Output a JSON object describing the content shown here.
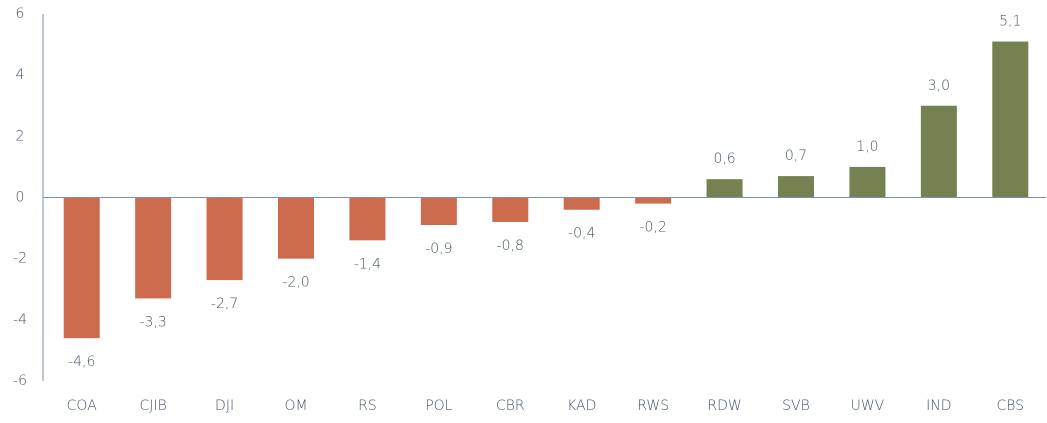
{
  "chart_data": {
    "type": "bar",
    "categories": [
      "COA",
      "CJIB",
      "DJI",
      "OM",
      "RS",
      "POL",
      "CBR",
      "KAD",
      "RWS",
      "RDW",
      "SVB",
      "UWV",
      "IND",
      "CBS"
    ],
    "values": [
      -4.6,
      -3.3,
      -2.7,
      -2.0,
      -1.4,
      -0.9,
      -0.8,
      -0.4,
      -0.2,
      0.6,
      0.7,
      1.0,
      3.0,
      5.1
    ],
    "value_labels": [
      "-4,6",
      "-3,3",
      "-2,7",
      "-2,0",
      "-1,4",
      "-0,9",
      "-0,8",
      "-0,4",
      "-0,2",
      "0,6",
      "0,7",
      "1,0",
      "3,0",
      "5,1"
    ],
    "colors": [
      "#cd6b4e",
      "#cd6b4e",
      "#cd6b4e",
      "#cd6b4e",
      "#cd6b4e",
      "#cd6b4e",
      "#cd6b4e",
      "#cd6b4e",
      "#cd6b4e",
      "#758150",
      "#758150",
      "#758150",
      "#758150",
      "#758150"
    ],
    "ylim": [
      -6,
      6
    ],
    "yticks": [
      -6,
      -4,
      -2,
      0,
      2,
      4,
      6
    ],
    "grid": false
  }
}
